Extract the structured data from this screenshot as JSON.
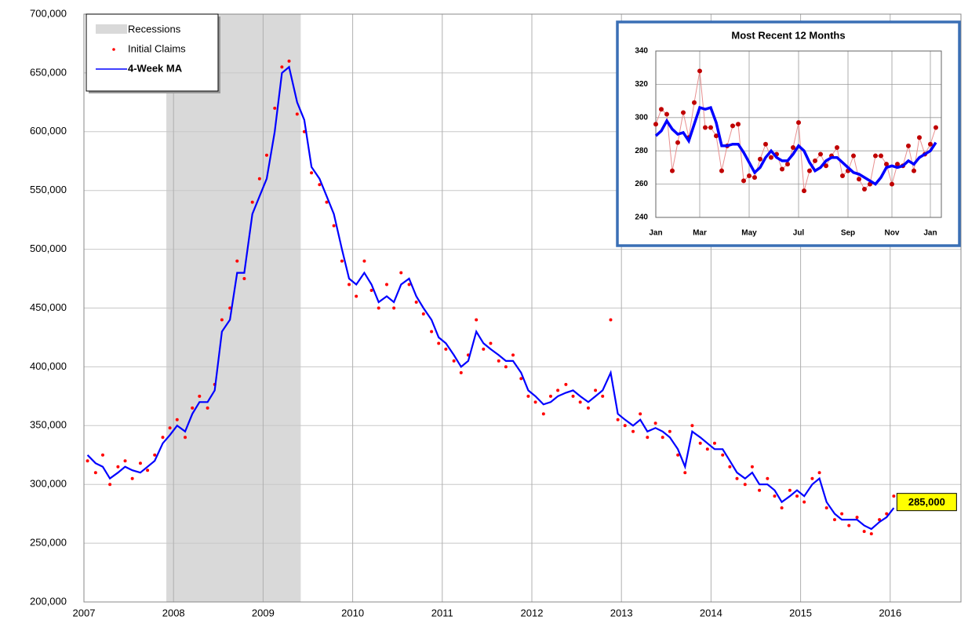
{
  "chart_data": [
    {
      "type": "line",
      "recessions": [
        {
          "start": 2007.92,
          "end": 2009.42
        }
      ],
      "recession_label": "Recessions",
      "recession_color": "#d9d9d9",
      "x": [
        2007.04,
        2007.13,
        2007.21,
        2007.29,
        2007.38,
        2007.46,
        2007.54,
        2007.63,
        2007.71,
        2007.79,
        2007.88,
        2007.96,
        2008.04,
        2008.13,
        2008.21,
        2008.29,
        2008.38,
        2008.46,
        2008.54,
        2008.63,
        2008.71,
        2008.79,
        2008.88,
        2008.96,
        2009.04,
        2009.13,
        2009.21,
        2009.29,
        2009.38,
        2009.46,
        2009.54,
        2009.63,
        2009.71,
        2009.79,
        2009.88,
        2009.96,
        2010.04,
        2010.13,
        2010.21,
        2010.29,
        2010.38,
        2010.46,
        2010.54,
        2010.63,
        2010.71,
        2010.79,
        2010.88,
        2010.96,
        2011.04,
        2011.13,
        2011.21,
        2011.29,
        2011.38,
        2011.46,
        2011.54,
        2011.63,
        2011.71,
        2011.79,
        2011.88,
        2011.96,
        2012.04,
        2012.13,
        2012.21,
        2012.29,
        2012.38,
        2012.46,
        2012.54,
        2012.63,
        2012.71,
        2012.79,
        2012.88,
        2012.96,
        2013.04,
        2013.13,
        2013.21,
        2013.29,
        2013.38,
        2013.46,
        2013.54,
        2013.63,
        2013.71,
        2013.79,
        2013.88,
        2013.96,
        2014.04,
        2014.13,
        2014.21,
        2014.29,
        2014.38,
        2014.46,
        2014.54,
        2014.63,
        2014.71,
        2014.79,
        2014.88,
        2014.96,
        2015.04,
        2015.13,
        2015.21,
        2015.29,
        2015.38,
        2015.46,
        2015.54,
        2015.63,
        2015.71,
        2015.79,
        2015.88,
        2015.96,
        2016.04
      ],
      "series": [
        {
          "name": "Initial Claims",
          "color": "#ff0000",
          "style": "dots",
          "values": [
            320000,
            310000,
            325000,
            300000,
            315000,
            320000,
            305000,
            318000,
            312000,
            325000,
            340000,
            348000,
            355000,
            340000,
            365000,
            375000,
            365000,
            385000,
            440000,
            450000,
            490000,
            475000,
            540000,
            560000,
            580000,
            620000,
            655000,
            660000,
            615000,
            600000,
            565000,
            555000,
            540000,
            520000,
            490000,
            470000,
            460000,
            490000,
            465000,
            450000,
            470000,
            450000,
            480000,
            470000,
            455000,
            445000,
            430000,
            420000,
            415000,
            405000,
            395000,
            410000,
            440000,
            415000,
            420000,
            405000,
            400000,
            410000,
            390000,
            375000,
            370000,
            360000,
            375000,
            380000,
            385000,
            375000,
            370000,
            365000,
            380000,
            375000,
            440000,
            355000,
            350000,
            345000,
            360000,
            340000,
            352000,
            340000,
            345000,
            325000,
            310000,
            350000,
            335000,
            330000,
            335000,
            325000,
            315000,
            305000,
            300000,
            315000,
            295000,
            305000,
            290000,
            280000,
            295000,
            290000,
            285000,
            305000,
            310000,
            280000,
            270000,
            275000,
            265000,
            272000,
            260000,
            258000,
            270000,
            275000,
            290000
          ]
        },
        {
          "name": "4-Week MA",
          "color": "#0000ff",
          "style": "line",
          "values": [
            325000,
            318000,
            315000,
            305000,
            310000,
            315000,
            312000,
            310000,
            315000,
            320000,
            335000,
            342000,
            350000,
            345000,
            360000,
            370000,
            370000,
            380000,
            430000,
            440000,
            480000,
            480000,
            530000,
            545000,
            560000,
            600000,
            650000,
            655000,
            625000,
            610000,
            570000,
            560000,
            545000,
            530000,
            500000,
            475000,
            470000,
            480000,
            470000,
            455000,
            460000,
            455000,
            470000,
            475000,
            460000,
            450000,
            440000,
            425000,
            420000,
            410000,
            400000,
            405000,
            430000,
            420000,
            415000,
            410000,
            405000,
            405000,
            395000,
            380000,
            375000,
            368000,
            370000,
            375000,
            378000,
            380000,
            375000,
            370000,
            375000,
            380000,
            395000,
            360000,
            355000,
            350000,
            355000,
            345000,
            348000,
            345000,
            340000,
            330000,
            315000,
            345000,
            340000,
            335000,
            330000,
            330000,
            320000,
            310000,
            305000,
            310000,
            300000,
            300000,
            295000,
            285000,
            290000,
            295000,
            290000,
            300000,
            305000,
            285000,
            275000,
            270000,
            270000,
            270000,
            265000,
            262000,
            268000,
            272000,
            280000
          ]
        }
      ],
      "annotation": {
        "x": 2016.04,
        "value": 285000,
        "label": "285,000"
      },
      "xlim": [
        2007,
        2016.79
      ],
      "xticks": [
        2007,
        2008,
        2009,
        2010,
        2011,
        2012,
        2013,
        2014,
        2015,
        2016
      ],
      "ylim": [
        200000,
        700000
      ],
      "yticks": [
        {
          "value": 200000,
          "label": "200,000"
        },
        {
          "value": 250000,
          "label": "250,000"
        },
        {
          "value": 300000,
          "label": "300,000"
        },
        {
          "value": 350000,
          "label": "350,000"
        },
        {
          "value": 400000,
          "label": "400,000"
        },
        {
          "value": 450000,
          "label": "450,000"
        },
        {
          "value": 500000,
          "label": "500,000"
        },
        {
          "value": 550000,
          "label": "550,000"
        },
        {
          "value": 600000,
          "label": "600,000"
        },
        {
          "value": 650000,
          "label": "650,000"
        },
        {
          "value": 700000,
          "label": "700,000"
        }
      ],
      "grid": true,
      "legend": "upper left"
    },
    {
      "type": "line",
      "title": "Most Recent 12 Months",
      "categories": [
        "Jan",
        null,
        null,
        null,
        null,
        null,
        null,
        null,
        "Mar",
        null,
        null,
        null,
        null,
        null,
        null,
        null,
        null,
        "May",
        null,
        null,
        null,
        null,
        null,
        null,
        null,
        null,
        "Jul",
        null,
        null,
        null,
        null,
        null,
        null,
        null,
        null,
        "Sep",
        null,
        null,
        null,
        null,
        null,
        null,
        null,
        "Nov",
        null,
        null,
        null,
        null,
        null,
        null,
        "Jan",
        null
      ],
      "series": [
        {
          "color": "#c00000",
          "style": "dots-line",
          "values": [
            296,
            305,
            302,
            268,
            285,
            303,
            288,
            309,
            328,
            294,
            294,
            289,
            268,
            283,
            295,
            296,
            262,
            265,
            264,
            275,
            284,
            276,
            278,
            269,
            272,
            282,
            297,
            256,
            268,
            274,
            278,
            271,
            277,
            282,
            265,
            268,
            277,
            263,
            257,
            260,
            277,
            277,
            272,
            260,
            272,
            271,
            283,
            268,
            288,
            278,
            284,
            294
          ]
        },
        {
          "color": "#0000ff",
          "style": "line",
          "values": [
            289,
            292,
            298,
            293,
            290,
            291,
            286,
            296,
            306,
            305,
            306,
            297,
            283,
            283,
            284,
            284,
            279,
            273,
            267,
            270,
            276,
            280,
            276,
            274,
            274,
            278,
            283,
            280,
            273,
            268,
            270,
            274,
            276,
            276,
            273,
            270,
            267,
            266,
            264,
            262,
            260,
            264,
            270,
            271,
            270,
            271,
            274,
            272,
            276,
            278,
            280,
            285
          ]
        }
      ],
      "ylim": [
        240,
        340
      ],
      "yticks": [
        240,
        260,
        280,
        300,
        320,
        340
      ],
      "grid": true
    }
  ]
}
